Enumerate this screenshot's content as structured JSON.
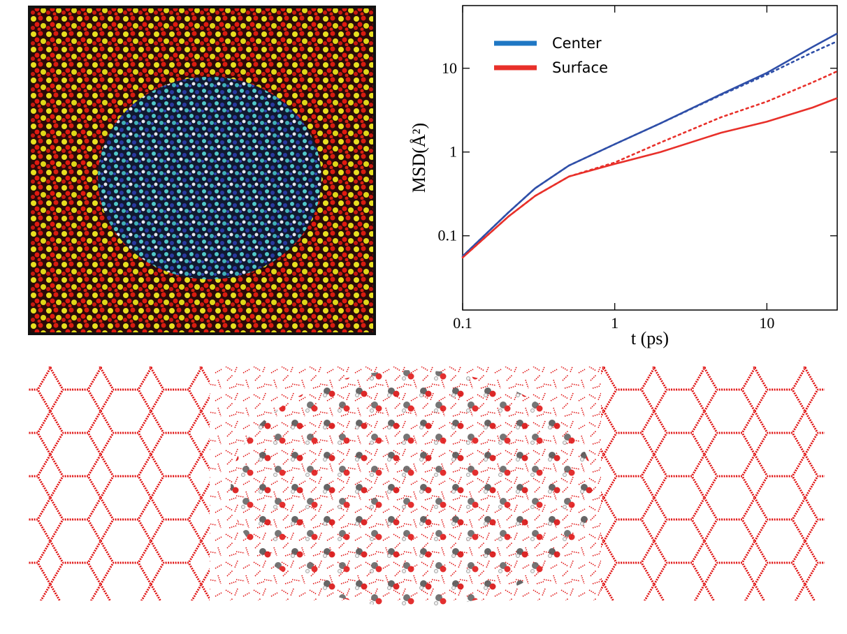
{
  "chart_data": {
    "type": "line",
    "xlabel": "t (ps)",
    "ylabel": "MSD(Å²)",
    "x": [
      0.1,
      0.2,
      0.3,
      0.5,
      1,
      2,
      5,
      10,
      20,
      29
    ],
    "series": [
      {
        "name": "Center",
        "color": "#2f4fa8",
        "legend_color": "#1f77c4",
        "values": [
          0.057,
          0.19,
          0.37,
          0.69,
          1.24,
          2.2,
          4.9,
          8.8,
          18,
          26
        ]
      },
      {
        "name": "Surface",
        "color": "#e8302a",
        "legend_color": "#e8302a",
        "values": [
          0.055,
          0.17,
          0.3,
          0.51,
          0.72,
          1.0,
          1.7,
          2.3,
          3.4,
          4.4
        ]
      },
      {
        "color": "#2f4fa8",
        "dashed": true,
        "values": [
          0.057,
          0.19,
          0.37,
          0.69,
          1.24,
          2.2,
          4.8,
          8.4,
          15.5,
          21
        ]
      },
      {
        "color": "#e8302a",
        "dashed": true,
        "values": [
          0.055,
          0.17,
          0.3,
          0.51,
          0.75,
          1.3,
          2.6,
          4.0,
          6.8,
          9.2
        ]
      }
    ],
    "xscale": "log",
    "yscale": "log",
    "xlim": [
      0.1,
      29
    ],
    "ylim": [
      0.013,
      56
    ],
    "xticks": [
      0.1,
      1,
      10
    ],
    "yticks": [
      0.1,
      1,
      10
    ],
    "legend": "upper left"
  }
}
